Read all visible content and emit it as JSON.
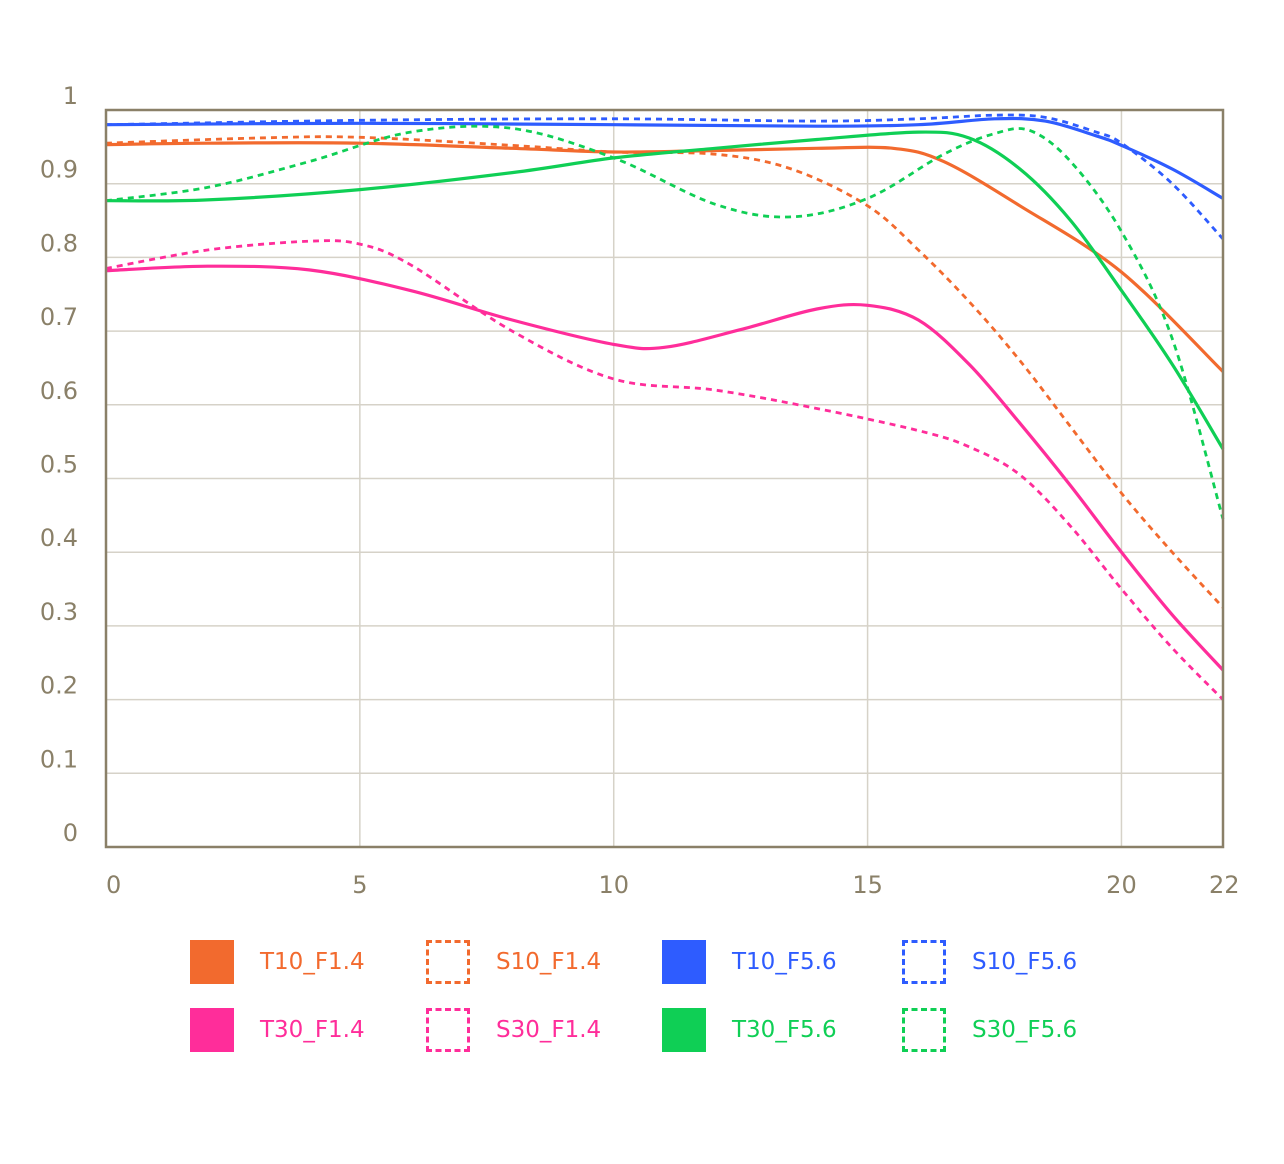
{
  "chart_data": {
    "type": "line",
    "title": "",
    "xlabel": "",
    "ylabel": "",
    "xlim": [
      0,
      22
    ],
    "ylim": [
      0,
      1
    ],
    "x_ticks": [
      "0",
      "5",
      "10",
      "15",
      "20",
      "22"
    ],
    "y_ticks": [
      "0",
      "0.1",
      "0.2",
      "0.3",
      "0.4",
      "0.5",
      "0.6",
      "0.7",
      "0.8",
      "0.9",
      "1"
    ],
    "grid": true,
    "legend_position": "bottom",
    "series": [
      {
        "name": "T10_F1.4",
        "color": "#f26a2e",
        "dashed": false,
        "x": [
          0,
          2,
          5,
          8,
          10,
          12,
          14,
          15.5,
          16.5,
          18,
          20,
          22
        ],
        "y": [
          0.953,
          0.955,
          0.955,
          0.948,
          0.943,
          0.945,
          0.948,
          0.948,
          0.93,
          0.87,
          0.78,
          0.645
        ]
      },
      {
        "name": "S10_F1.4",
        "color": "#f26a2e",
        "dashed": true,
        "x": [
          0,
          3,
          5,
          8,
          10,
          12,
          13.5,
          15,
          16,
          17,
          18,
          19,
          20,
          21,
          22
        ],
        "y": [
          0.955,
          0.962,
          0.963,
          0.952,
          0.943,
          0.94,
          0.92,
          0.87,
          0.81,
          0.74,
          0.66,
          0.57,
          0.48,
          0.4,
          0.325
        ]
      },
      {
        "name": "T10_F5.6",
        "color": "#2e5cff",
        "dashed": false,
        "x": [
          0,
          5,
          10,
          14,
          16,
          17.5,
          18.5,
          19.5,
          20,
          21,
          22
        ],
        "y": [
          0.98,
          0.982,
          0.98,
          0.978,
          0.98,
          0.988,
          0.985,
          0.965,
          0.952,
          0.92,
          0.88
        ]
      },
      {
        "name": "S10_F5.6",
        "color": "#2e5cff",
        "dashed": true,
        "x": [
          0,
          5,
          10,
          14,
          16,
          17.5,
          18.5,
          19.5,
          20,
          21,
          22
        ],
        "y": [
          0.98,
          0.986,
          0.988,
          0.985,
          0.988,
          0.993,
          0.99,
          0.97,
          0.955,
          0.9,
          0.825
        ]
      },
      {
        "name": "T30_F1.4",
        "color": "#ff2d9a",
        "dashed": false,
        "x": [
          0,
          2,
          4,
          6,
          8,
          10,
          11,
          12.5,
          14,
          15,
          16,
          17,
          18,
          19,
          20,
          21,
          22
        ],
        "y": [
          0.782,
          0.788,
          0.783,
          0.755,
          0.715,
          0.682,
          0.678,
          0.702,
          0.73,
          0.735,
          0.715,
          0.655,
          0.575,
          0.49,
          0.4,
          0.315,
          0.24
        ]
      },
      {
        "name": "S30_F1.4",
        "color": "#ff2d9a",
        "dashed": true,
        "x": [
          0,
          2,
          4,
          5,
          6,
          8,
          10,
          12,
          14,
          16,
          17,
          18,
          19,
          20,
          21,
          22
        ],
        "y": [
          0.785,
          0.81,
          0.822,
          0.818,
          0.79,
          0.7,
          0.635,
          0.62,
          0.595,
          0.565,
          0.543,
          0.505,
          0.435,
          0.35,
          0.27,
          0.2
        ]
      },
      {
        "name": "T30_F5.6",
        "color": "#0fcf55",
        "dashed": false,
        "x": [
          0,
          2,
          5,
          8,
          10,
          12,
          14,
          16,
          17,
          18,
          19,
          20,
          21,
          22
        ],
        "y": [
          0.877,
          0.878,
          0.892,
          0.915,
          0.935,
          0.948,
          0.96,
          0.97,
          0.962,
          0.92,
          0.85,
          0.755,
          0.655,
          0.54
        ]
      },
      {
        "name": "S30_F5.6",
        "color": "#0fcf55",
        "dashed": true,
        "x": [
          0,
          2,
          4,
          6,
          8,
          10,
          12,
          13.5,
          15,
          16.5,
          17.5,
          18.2,
          19,
          20,
          21,
          22
        ],
        "y": [
          0.877,
          0.895,
          0.93,
          0.97,
          0.975,
          0.935,
          0.872,
          0.855,
          0.88,
          0.94,
          0.968,
          0.972,
          0.93,
          0.835,
          0.69,
          0.445
        ]
      }
    ]
  },
  "legend": [
    {
      "label": "T10_F1.4",
      "color": "#f26a2e",
      "dashed": false
    },
    {
      "label": "S10_F1.4",
      "color": "#f26a2e",
      "dashed": true
    },
    {
      "label": "T10_F5.6",
      "color": "#2e5cff",
      "dashed": false
    },
    {
      "label": "S10_F5.6",
      "color": "#2e5cff",
      "dashed": true
    },
    {
      "label": "T30_F1.4",
      "color": "#ff2d9a",
      "dashed": false
    },
    {
      "label": "S30_F1.4",
      "color": "#ff2d9a",
      "dashed": true
    },
    {
      "label": "T30_F5.6",
      "color": "#0fcf55",
      "dashed": false
    },
    {
      "label": "S30_F5.6",
      "color": "#0fcf55",
      "dashed": true
    }
  ],
  "colors": {
    "axis": "#8a8068",
    "grid": "#d6d2c8"
  }
}
